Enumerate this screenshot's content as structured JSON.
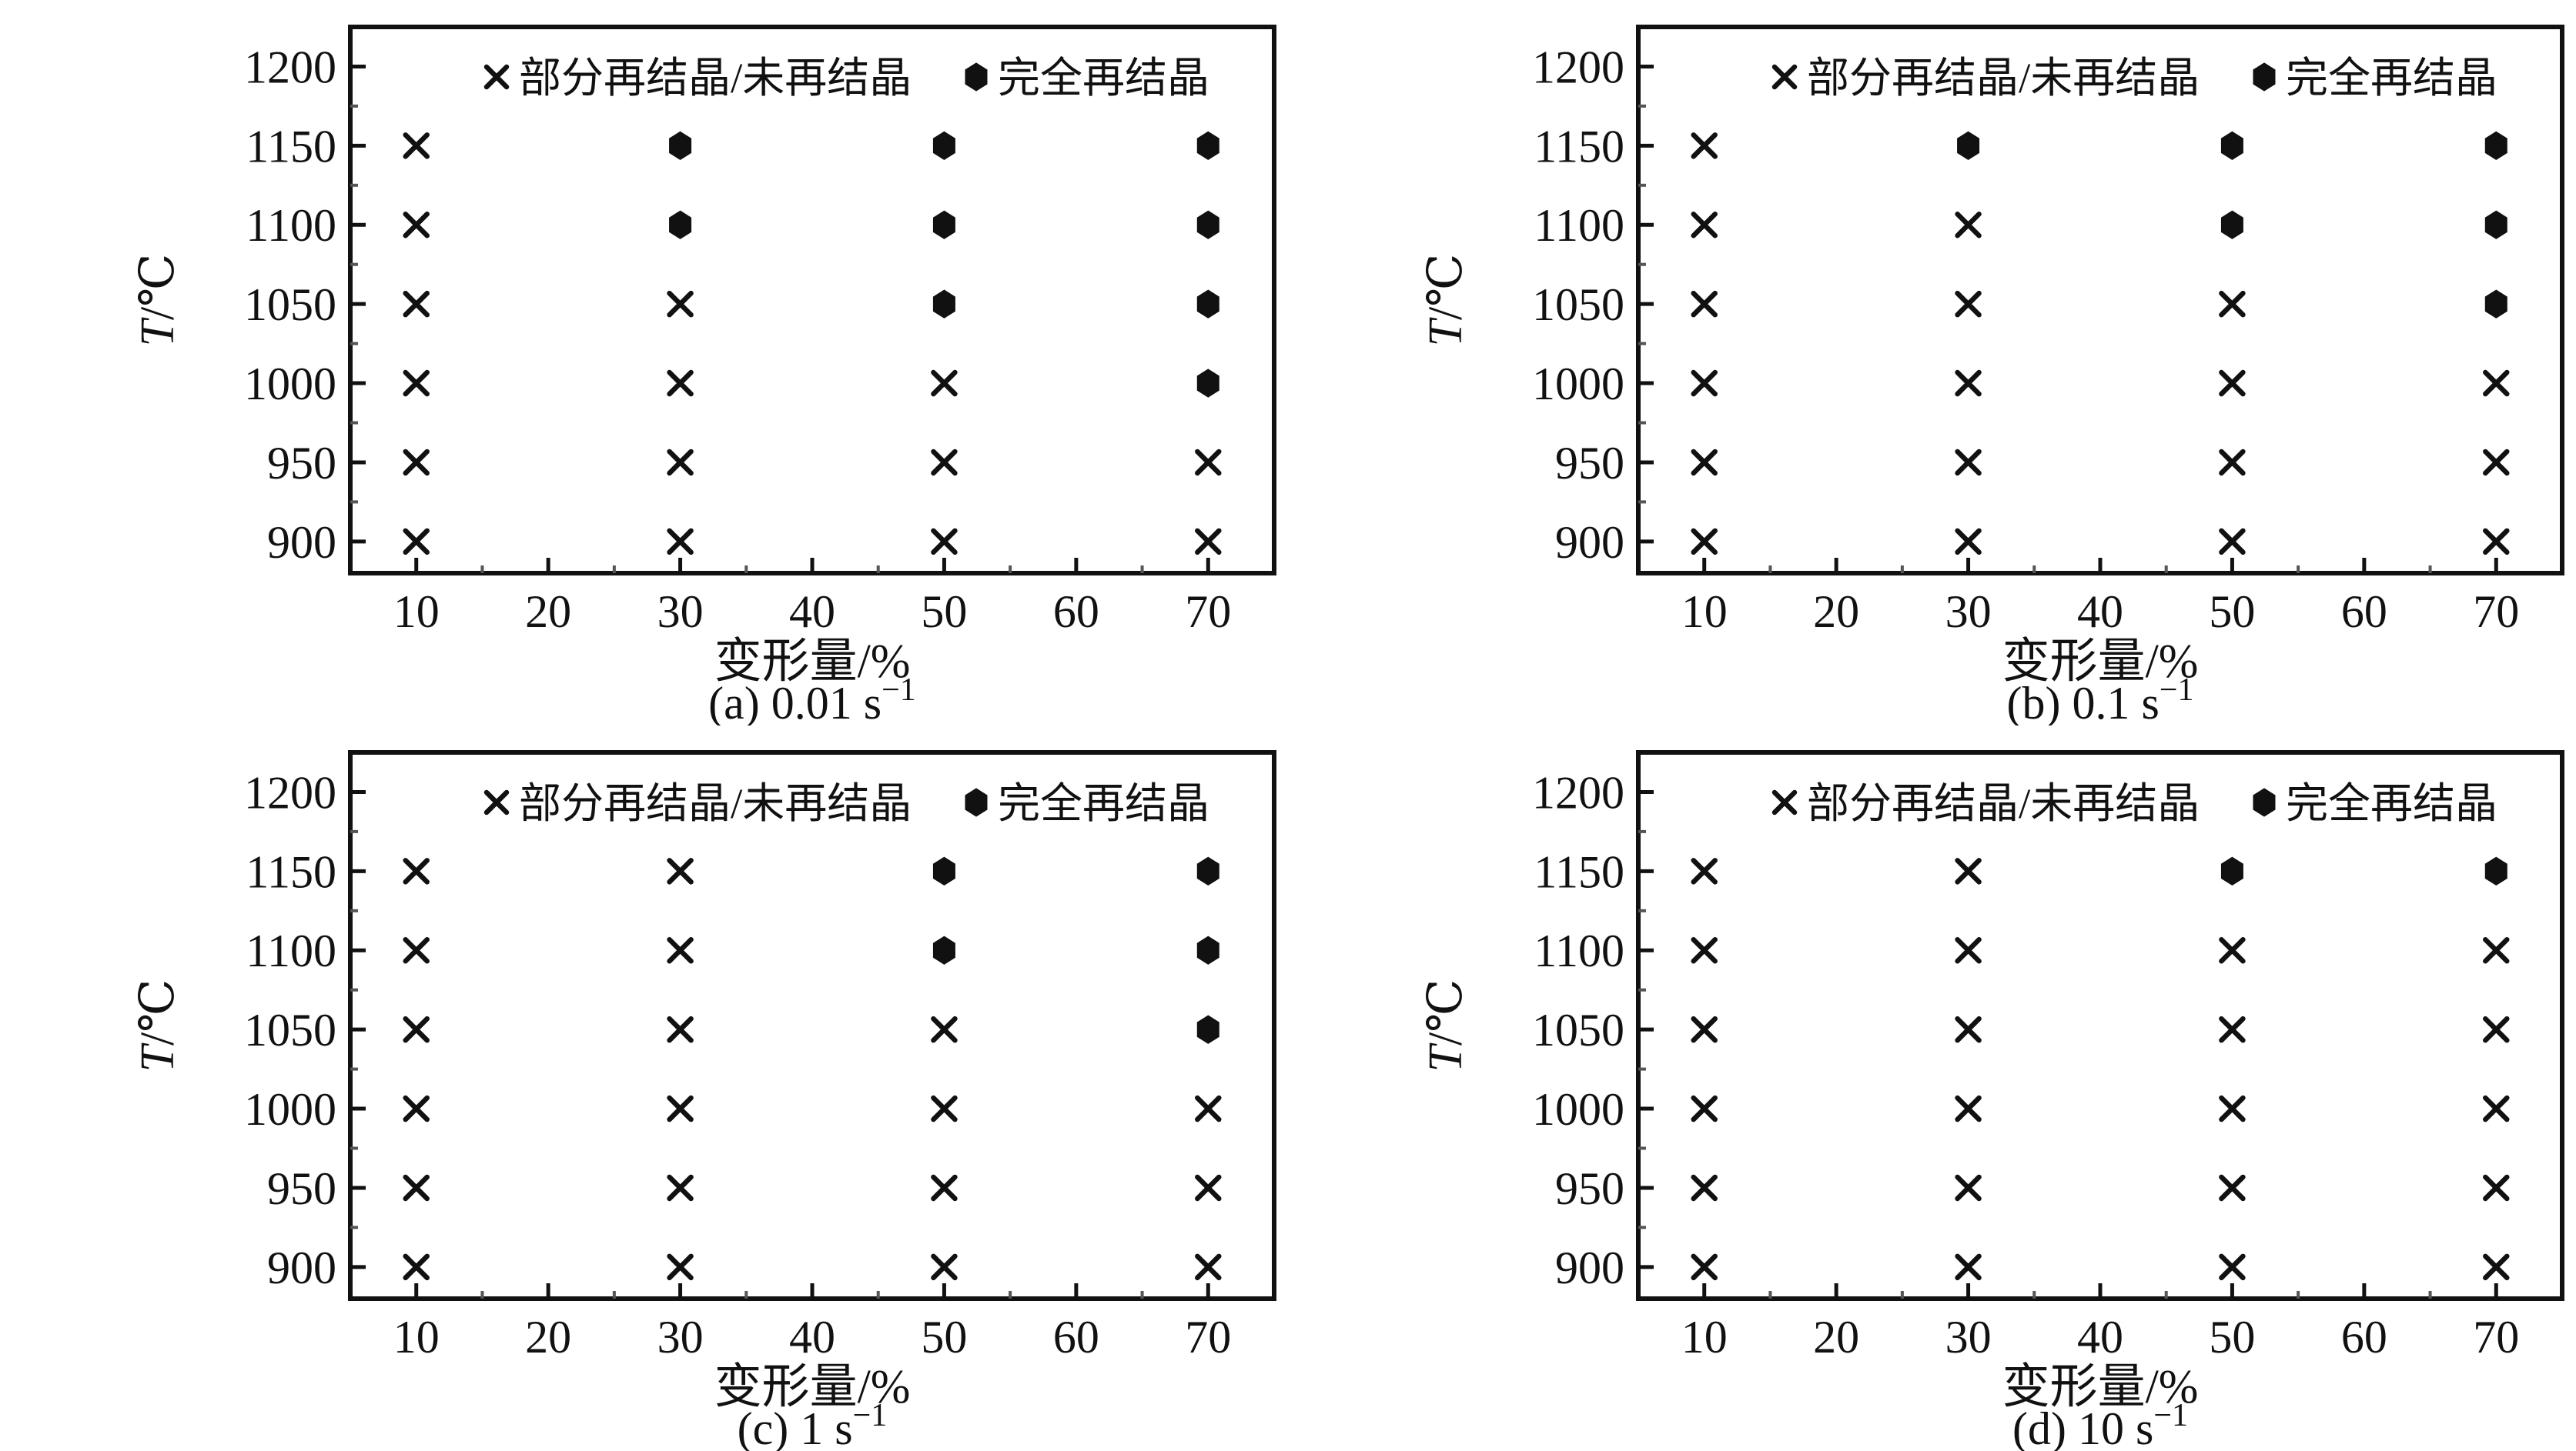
{
  "figure": {
    "background": "#ffffff",
    "ink_color": "#111111",
    "minor_tick_color": "#555555",
    "xlabel": "变形量/%",
    "ylabel_italic": "T",
    "ylabel_unit": "/℃",
    "legend": {
      "cross_symbol": "×",
      "cross_label": "部分再结晶/未再结晶",
      "hex_symbol": "●",
      "hex_label": "完全再结晶"
    },
    "axes": {
      "x_ticks": [
        10,
        20,
        30,
        40,
        50,
        60,
        70
      ],
      "y_ticks": [
        900,
        950,
        1000,
        1050,
        1100,
        1150,
        1200
      ],
      "x_minor_ticks": [
        15,
        25,
        35,
        45,
        55,
        65
      ],
      "y_minor_ticks": [
        925,
        975,
        1025,
        1075,
        1125,
        1175
      ],
      "xlim": [
        5,
        75
      ],
      "ylim": [
        880,
        1225
      ],
      "grid": false
    }
  },
  "chart_data": [
    {
      "type": "scatter",
      "panel": "a",
      "caption": "(a) 0.01 s⁻¹",
      "caption_text": "(a) 0.01 s",
      "caption_sup": "−1",
      "strain_rate": "0.01",
      "xlabel": "变形量/%",
      "ylabel": "T/℃",
      "legend_position": "top-inside",
      "series": [
        {
          "name": "部分再结晶/未再结晶",
          "marker": "cross",
          "points": [
            [
              10,
              1150
            ],
            [
              10,
              1100
            ],
            [
              10,
              1050
            ],
            [
              10,
              1000
            ],
            [
              10,
              950
            ],
            [
              10,
              900
            ],
            [
              30,
              1050
            ],
            [
              30,
              1000
            ],
            [
              30,
              950
            ],
            [
              30,
              900
            ],
            [
              50,
              1000
            ],
            [
              50,
              950
            ],
            [
              50,
              900
            ],
            [
              70,
              950
            ],
            [
              70,
              900
            ]
          ]
        },
        {
          "name": "完全再结晶",
          "marker": "hexagon",
          "points": [
            [
              30,
              1150
            ],
            [
              30,
              1100
            ],
            [
              50,
              1150
            ],
            [
              50,
              1100
            ],
            [
              50,
              1050
            ],
            [
              70,
              1150
            ],
            [
              70,
              1100
            ],
            [
              70,
              1050
            ],
            [
              70,
              1000
            ]
          ]
        }
      ]
    },
    {
      "type": "scatter",
      "panel": "b",
      "caption": "(b) 0.1 s⁻¹",
      "caption_text": "(b) 0.1 s",
      "caption_sup": "−1",
      "strain_rate": "0.1",
      "xlabel": "变形量/%",
      "ylabel": "T/℃",
      "legend_position": "top-inside",
      "series": [
        {
          "name": "部分再结晶/未再结晶",
          "marker": "cross",
          "points": [
            [
              10,
              1150
            ],
            [
              10,
              1100
            ],
            [
              10,
              1050
            ],
            [
              10,
              1000
            ],
            [
              10,
              950
            ],
            [
              10,
              900
            ],
            [
              30,
              1100
            ],
            [
              30,
              1050
            ],
            [
              30,
              1000
            ],
            [
              30,
              950
            ],
            [
              30,
              900
            ],
            [
              50,
              1050
            ],
            [
              50,
              1000
            ],
            [
              50,
              950
            ],
            [
              50,
              900
            ],
            [
              70,
              1000
            ],
            [
              70,
              950
            ],
            [
              70,
              900
            ]
          ]
        },
        {
          "name": "完全再结晶",
          "marker": "hexagon",
          "points": [
            [
              30,
              1150
            ],
            [
              50,
              1150
            ],
            [
              50,
              1100
            ],
            [
              70,
              1150
            ],
            [
              70,
              1100
            ],
            [
              70,
              1050
            ]
          ]
        }
      ]
    },
    {
      "type": "scatter",
      "panel": "c",
      "caption": "(c) 1 s⁻¹",
      "caption_text": "(c) 1 s",
      "caption_sup": "−1",
      "strain_rate": "1",
      "xlabel": "变形量/%",
      "ylabel": "T/℃",
      "legend_position": "top-inside",
      "series": [
        {
          "name": "部分再结晶/未再结晶",
          "marker": "cross",
          "points": [
            [
              10,
              1150
            ],
            [
              10,
              1100
            ],
            [
              10,
              1050
            ],
            [
              10,
              1000
            ],
            [
              10,
              950
            ],
            [
              10,
              900
            ],
            [
              30,
              1150
            ],
            [
              30,
              1100
            ],
            [
              30,
              1050
            ],
            [
              30,
              1000
            ],
            [
              30,
              950
            ],
            [
              30,
              900
            ],
            [
              50,
              1050
            ],
            [
              50,
              1000
            ],
            [
              50,
              950
            ],
            [
              50,
              900
            ],
            [
              70,
              1000
            ],
            [
              70,
              950
            ],
            [
              70,
              900
            ]
          ]
        },
        {
          "name": "完全再结晶",
          "marker": "hexagon",
          "points": [
            [
              50,
              1150
            ],
            [
              50,
              1100
            ],
            [
              70,
              1150
            ],
            [
              70,
              1100
            ],
            [
              70,
              1050
            ]
          ]
        }
      ]
    },
    {
      "type": "scatter",
      "panel": "d",
      "caption": "(d) 10 s⁻¹",
      "caption_text": "(d) 10 s",
      "caption_sup": "−1",
      "strain_rate": "10",
      "xlabel": "变形量/%",
      "ylabel": "T/℃",
      "legend_position": "top-inside",
      "series": [
        {
          "name": "部分再结晶/未再结晶",
          "marker": "cross",
          "points": [
            [
              10,
              1150
            ],
            [
              10,
              1100
            ],
            [
              10,
              1050
            ],
            [
              10,
              1000
            ],
            [
              10,
              950
            ],
            [
              10,
              900
            ],
            [
              30,
              1150
            ],
            [
              30,
              1100
            ],
            [
              30,
              1050
            ],
            [
              30,
              1000
            ],
            [
              30,
              950
            ],
            [
              30,
              900
            ],
            [
              50,
              1100
            ],
            [
              50,
              1050
            ],
            [
              50,
              1000
            ],
            [
              50,
              950
            ],
            [
              50,
              900
            ],
            [
              70,
              1100
            ],
            [
              70,
              1050
            ],
            [
              70,
              1000
            ],
            [
              70,
              950
            ],
            [
              70,
              900
            ]
          ]
        },
        {
          "name": "完全再结晶",
          "marker": "hexagon",
          "points": [
            [
              50,
              1150
            ],
            [
              70,
              1150
            ]
          ]
        }
      ]
    }
  ]
}
